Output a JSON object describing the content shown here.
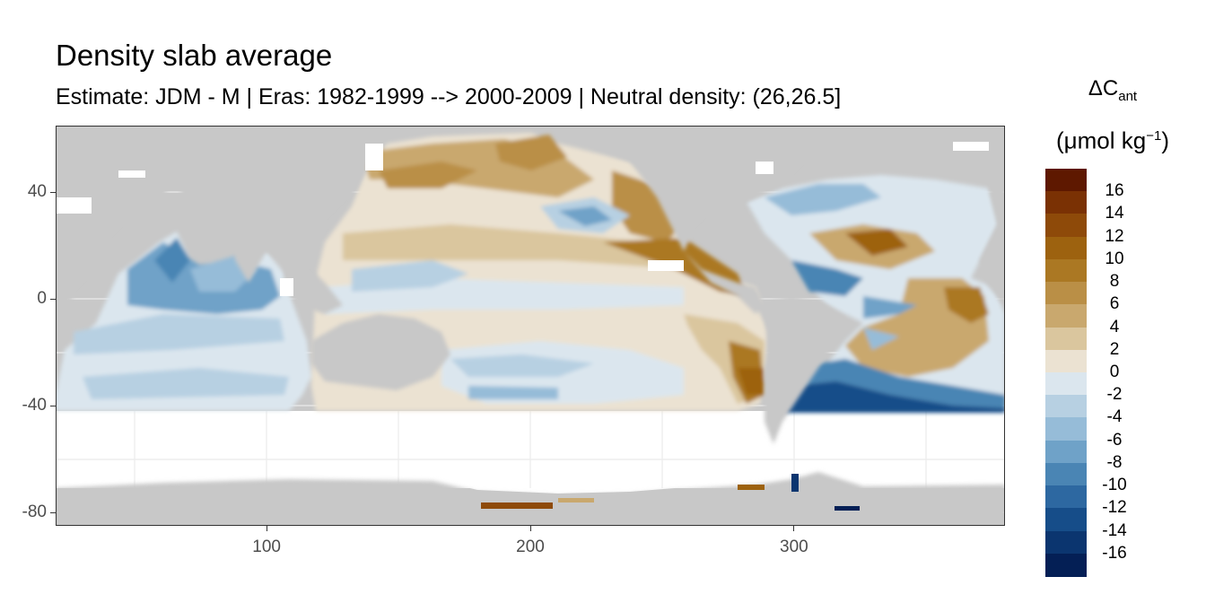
{
  "title": "Density slab average",
  "subtitle": "Estimate: JDM - M | Eras: 1982-1999 --> 2000-2009 | Neutral density: (26,26.5]",
  "legend": {
    "symbol": "ΔC",
    "symbol_sub": "ant",
    "unit_main": "(μmol kg",
    "unit_sup": "−1",
    "unit_close": ")",
    "labels": [
      "16",
      "14",
      "12",
      "10",
      "8",
      "6",
      "4",
      "2",
      "0",
      "-2",
      "-4",
      "-6",
      "-8",
      "-10",
      "-12",
      "-14",
      "-16"
    ],
    "colors": [
      "#5e1800",
      "#7a3104",
      "#8e4a09",
      "#9d620f",
      "#ab7823",
      "#ba8f46",
      "#c9a86e",
      "#dac69e",
      "#ebe2d2",
      "#dbe6ee",
      "#b7d0e2",
      "#96bcd8",
      "#6fa2c8",
      "#4a85b4",
      "#2d68a1",
      "#164d89",
      "#0b356f",
      "#041f55"
    ]
  },
  "chart_data": {
    "type": "heatmap",
    "title": "Density slab average",
    "subtitle": "Estimate: JDM - M | Eras: 1982-1999 --> 2000-2009 | Neutral density: (26,26.5]",
    "xlabel": "",
    "ylabel": "",
    "xlim": [
      20,
      380
    ],
    "ylim": [
      -85,
      65
    ],
    "x_ticks": [
      100,
      200,
      300
    ],
    "y_ticks": [
      40,
      0,
      -40,
      -80
    ],
    "x_tick_labels": [
      "100",
      "200",
      "300"
    ],
    "y_tick_labels": [
      "40",
      "0",
      "-40",
      "-80"
    ],
    "variable": "ΔCant",
    "unit": "μmol kg−1",
    "color_scale": {
      "min": -17,
      "max": 17,
      "step": 2,
      "palette": "brown-white-blue"
    },
    "land_color": "#c8c8c8",
    "grid": true,
    "legend_position": "right"
  }
}
